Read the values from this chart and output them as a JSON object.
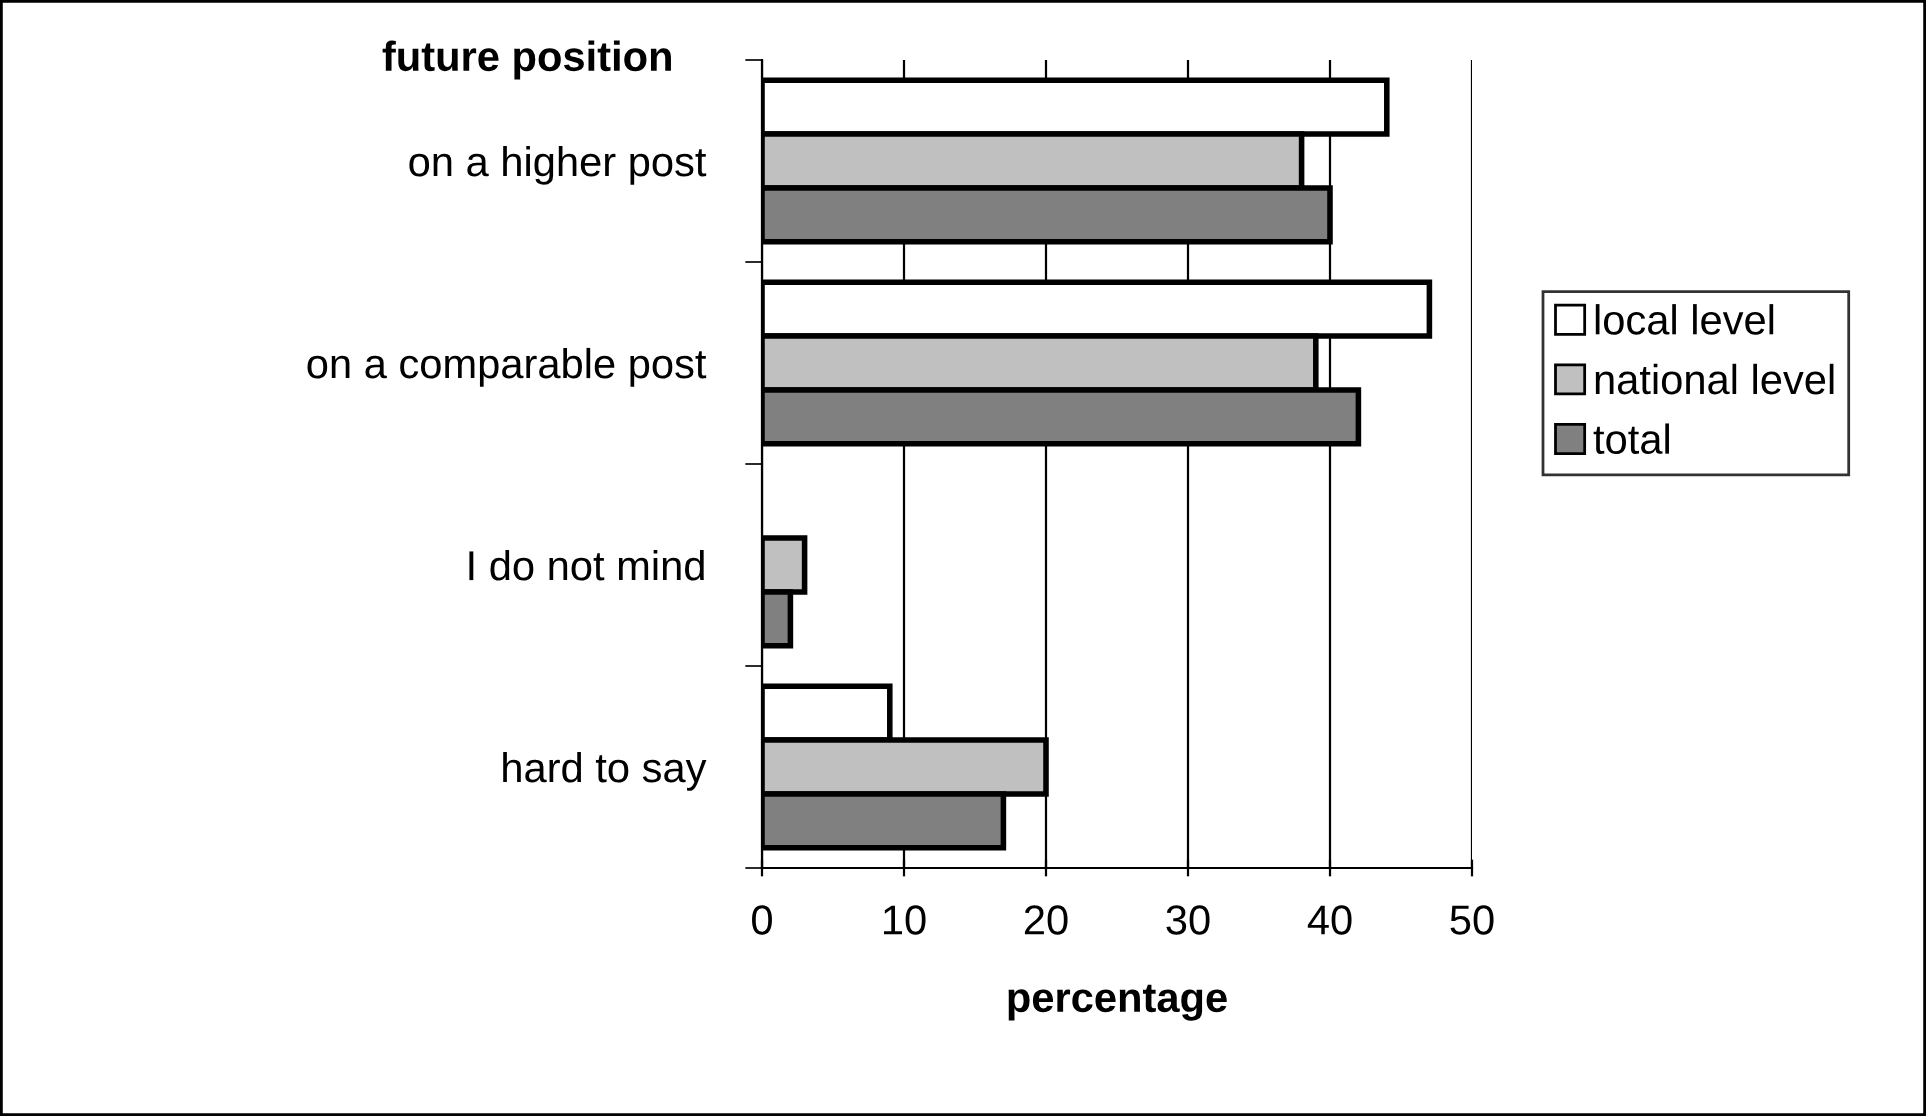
{
  "chart_data": {
    "type": "bar",
    "orientation": "horizontal",
    "ylabel": "future position",
    "xlabel": "percentage",
    "categories": [
      "on a higher post",
      "on a comparable post",
      "I do not mind",
      "hard to say"
    ],
    "series": [
      {
        "name": "local level",
        "color": "#ffffff",
        "values": [
          44,
          47,
          0,
          9
        ]
      },
      {
        "name": "national level",
        "color": "#c0c0c0",
        "values": [
          38,
          39,
          3,
          20
        ]
      },
      {
        "name": "total",
        "color": "#808080",
        "values": [
          40,
          42,
          2,
          17
        ]
      }
    ],
    "xlim": [
      0,
      50
    ],
    "xticks": [
      0,
      10,
      20,
      30,
      40,
      50
    ],
    "grid": "x",
    "legend": "right"
  }
}
